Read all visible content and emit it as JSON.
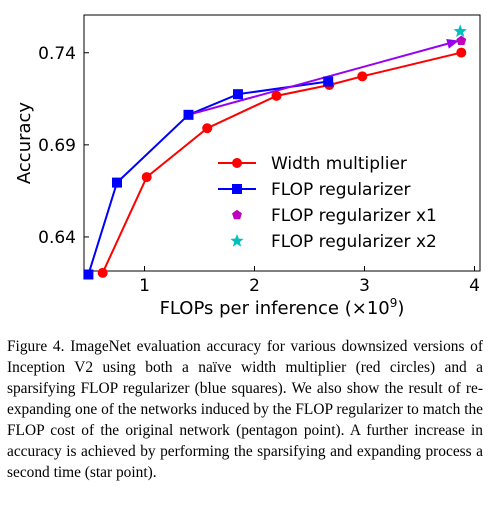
{
  "chart_data": {
    "type": "line",
    "xlabel": "FLOPs per inference",
    "xlabel_multiplier": "(×10",
    "xlabel_exponent": "9",
    "xlabel_close": ")",
    "ylabel": "Accuracy",
    "xlim": [
      0.45,
      4.05
    ],
    "ylim": [
      0.6215,
      0.7605
    ],
    "x_ticks": [
      1,
      2,
      3,
      4
    ],
    "y_ticks": [
      0.64,
      0.69,
      0.74
    ],
    "y_tick_labels": [
      "0.64",
      "0.69",
      "0.74"
    ],
    "grid": false,
    "legend_position": "lower-right",
    "series": [
      {
        "name": "Width multiplier",
        "color": "#ff0000",
        "marker": "circle",
        "points": [
          [
            0.62,
            0.6205
          ],
          [
            1.02,
            0.6725
          ],
          [
            1.57,
            0.699
          ],
          [
            2.2,
            0.7166
          ],
          [
            2.68,
            0.7225
          ],
          [
            2.98,
            0.7272
          ],
          [
            3.88,
            0.7401
          ]
        ]
      },
      {
        "name": "FLOP regularizer",
        "color": "#0000ff",
        "marker": "square",
        "points": [
          [
            0.49,
            0.6196
          ],
          [
            0.75,
            0.6695
          ],
          [
            1.4,
            0.7063
          ],
          [
            1.85,
            0.7175
          ],
          [
            2.67,
            0.7244
          ]
        ]
      },
      {
        "name": "FLOP regularizer x1",
        "color": "#bf00bf",
        "marker": "pentagon",
        "points": [
          [
            3.88,
            0.7465
          ]
        ]
      },
      {
        "name": "FLOP regularizer x2",
        "color": "#00bfbf",
        "marker": "star",
        "points": [
          [
            3.87,
            0.7516
          ]
        ]
      }
    ],
    "annotations": [
      {
        "type": "arrow",
        "color": "#9900ee",
        "from": [
          1.4,
          0.7063
        ],
        "to": [
          3.86,
          0.7466
        ]
      }
    ]
  },
  "caption": {
    "label": "Figure 4.",
    "text": "ImageNet evaluation accuracy for various downsized versions of Inception V2 using both a naïve width multiplier (red circles) and a sparsifying FLOP regularizer (blue squares). We also show the result of re-expanding one of the networks induced by the FLOP regularizer to match the FLOP cost of the original network (pentagon point). A further increase in accuracy is achieved by performing the sparsifying and expanding process a second time (star point)."
  }
}
